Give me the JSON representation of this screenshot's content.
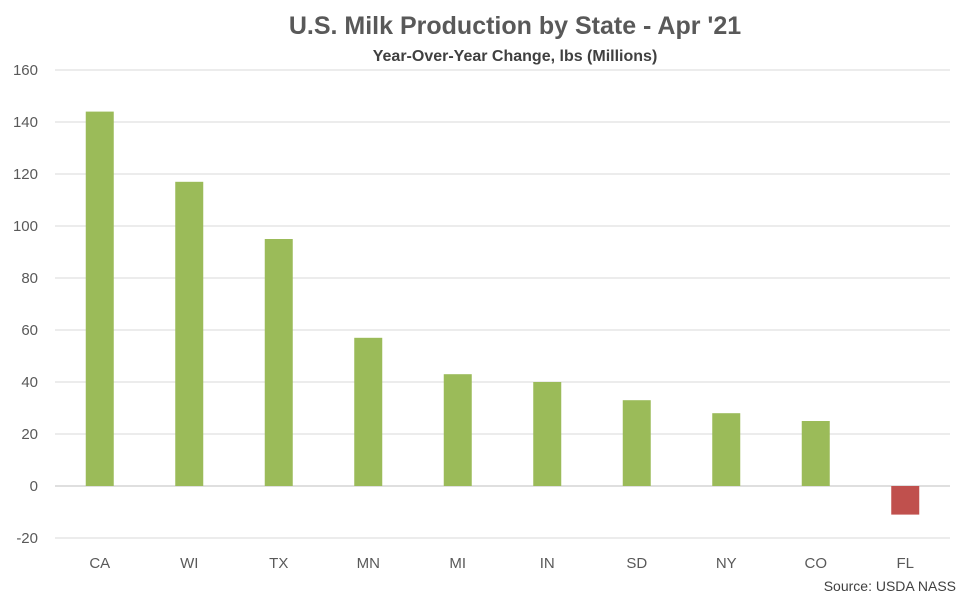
{
  "chart_data": {
    "type": "bar",
    "title": "U.S. Milk Production by State - Apr '21",
    "subtitle": "Year-Over-Year Change, lbs (Millions)",
    "source": "Source: USDA NASS",
    "categories": [
      "CA",
      "WI",
      "TX",
      "MN",
      "MI",
      "IN",
      "SD",
      "NY",
      "CO",
      "FL"
    ],
    "values": [
      144,
      117,
      95,
      57,
      43,
      40,
      33,
      28,
      25,
      -11
    ],
    "ylim": [
      -20,
      160
    ],
    "yticks": [
      -20,
      0,
      20,
      40,
      60,
      80,
      100,
      120,
      140,
      160
    ],
    "grid": true,
    "colors": {
      "positive": "#9BBB59",
      "negative": "#C0504D",
      "grid": "#D9D9D9",
      "axis": "#BFBFBF"
    }
  }
}
